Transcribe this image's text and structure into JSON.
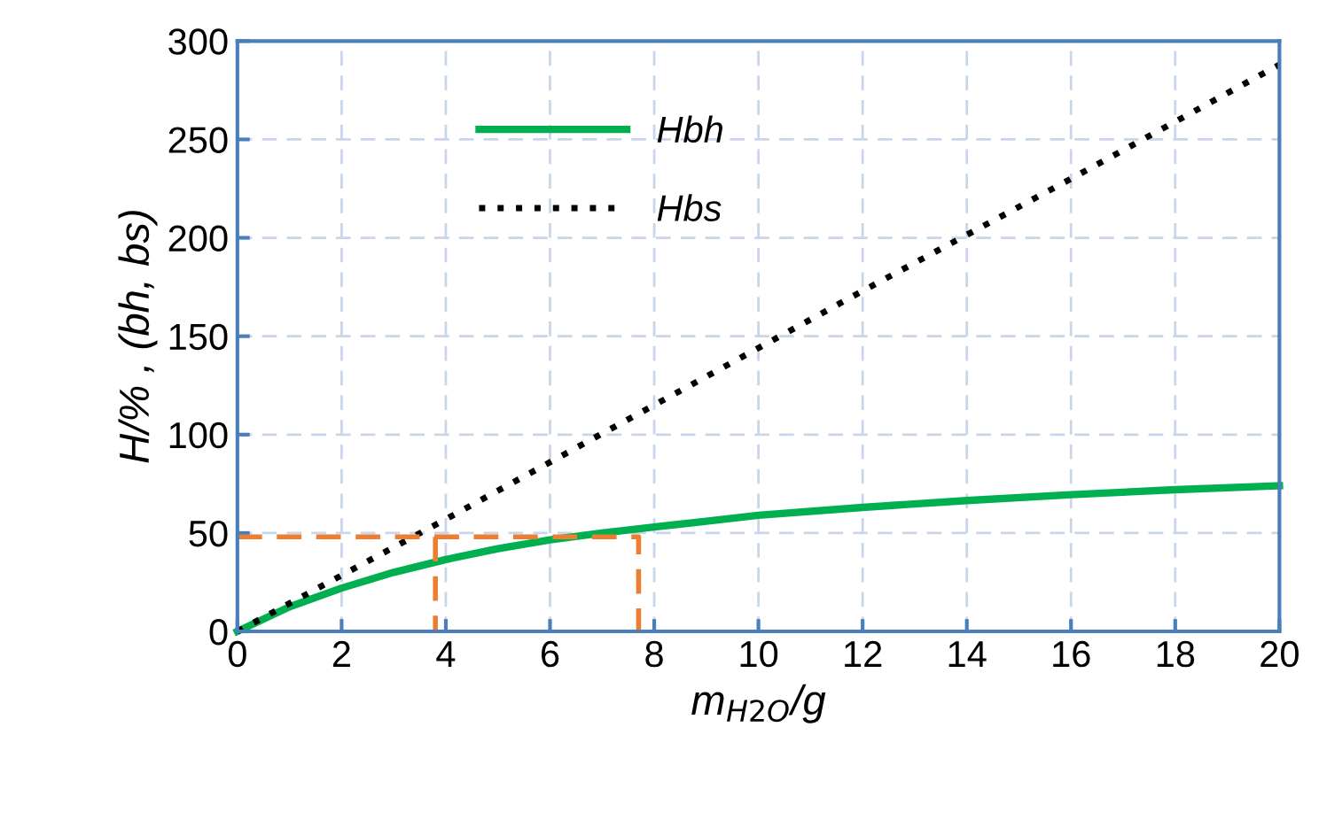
{
  "chart_data": {
    "type": "line",
    "xlabel": "m$_{H2O}$/g",
    "ylabel": "H/% , (bh, bs)",
    "xlim": [
      0,
      20
    ],
    "ylim": [
      0,
      300
    ],
    "xticks": [
      0,
      2,
      4,
      6,
      8,
      10,
      12,
      14,
      16,
      18,
      20
    ],
    "yticks": [
      0,
      50,
      100,
      150,
      200,
      250,
      300
    ],
    "grid": true,
    "legend": "top left",
    "series": [
      {
        "name": "Hbh",
        "color": "#00b050",
        "line_style": "solid",
        "x": [
          0,
          1,
          2,
          3,
          4,
          5,
          6,
          7,
          8,
          9,
          10,
          12,
          14,
          16,
          18,
          20
        ],
        "values": [
          0,
          12.5,
          22,
          30,
          36.5,
          42,
          46.5,
          50,
          53,
          56,
          59,
          63,
          66.5,
          69.5,
          72,
          74
        ]
      },
      {
        "name": "Hbs",
        "color": "#000000",
        "line_style": "dotted",
        "x": [
          0,
          4,
          8,
          12,
          16,
          20
        ],
        "values": [
          0,
          57,
          115,
          173,
          230,
          288
        ]
      },
      {
        "color": "#ed7d31",
        "line_style": "dashed",
        "x": [
          0,
          7.7,
          7.7
        ],
        "values": [
          48,
          48,
          0
        ]
      },
      {
        "color": "#ed7d31",
        "line_style": "dashed",
        "x": [
          3.8,
          3.8
        ],
        "values": [
          48,
          0
        ]
      }
    ]
  }
}
